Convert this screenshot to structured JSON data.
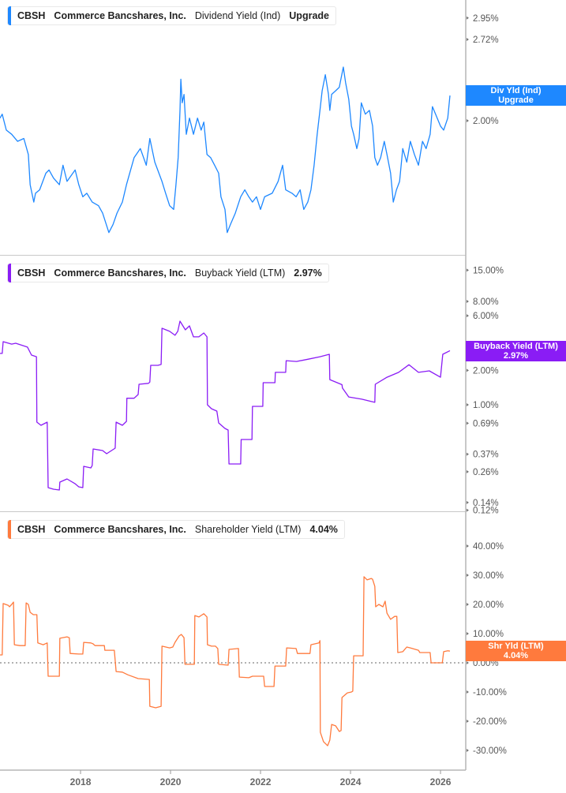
{
  "chart_data": [
    {
      "type": "line",
      "ticker": "CBSH",
      "company": "Commerce Bancshares, Inc.",
      "metric": "Dividend Yield (Ind)",
      "value_label": "Upgrade",
      "tag_line1": "Div Yld (Ind)",
      "tag_line2": "Upgrade",
      "color": "#1E88FF",
      "y_scale": "log",
      "y_ticks": [
        "2.95%",
        "2.72%",
        "2.00%"
      ],
      "y_tick_values": [
        2.95,
        2.72,
        2.0
      ],
      "points": [
        [
          2016.21,
          2.02
        ],
        [
          2016.26,
          2.05
        ],
        [
          2016.35,
          1.93
        ],
        [
          2016.47,
          1.9
        ],
        [
          2016.6,
          1.85
        ],
        [
          2016.74,
          1.87
        ],
        [
          2016.84,
          1.76
        ],
        [
          2016.88,
          1.57
        ],
        [
          2016.96,
          1.47
        ],
        [
          2017.0,
          1.52
        ],
        [
          2017.09,
          1.54
        ],
        [
          2017.23,
          1.64
        ],
        [
          2017.3,
          1.66
        ],
        [
          2017.4,
          1.61
        ],
        [
          2017.53,
          1.57
        ],
        [
          2017.61,
          1.69
        ],
        [
          2017.7,
          1.59
        ],
        [
          2017.88,
          1.66
        ],
        [
          2017.96,
          1.57
        ],
        [
          2018.05,
          1.5
        ],
        [
          2018.14,
          1.52
        ],
        [
          2018.26,
          1.47
        ],
        [
          2018.4,
          1.45
        ],
        [
          2018.49,
          1.41
        ],
        [
          2018.63,
          1.31
        ],
        [
          2018.72,
          1.35
        ],
        [
          2018.81,
          1.41
        ],
        [
          2018.93,
          1.47
        ],
        [
          2019.02,
          1.57
        ],
        [
          2019.19,
          1.74
        ],
        [
          2019.33,
          1.8
        ],
        [
          2019.46,
          1.69
        ],
        [
          2019.54,
          1.87
        ],
        [
          2019.65,
          1.71
        ],
        [
          2019.81,
          1.59
        ],
        [
          2019.89,
          1.52
        ],
        [
          2019.98,
          1.45
        ],
        [
          2020.07,
          1.43
        ],
        [
          2020.12,
          1.57
        ],
        [
          2020.17,
          1.74
        ],
        [
          2020.21,
          2.08
        ],
        [
          2020.23,
          2.34
        ],
        [
          2020.26,
          2.14
        ],
        [
          2020.3,
          2.21
        ],
        [
          2020.35,
          1.9
        ],
        [
          2020.42,
          2.02
        ],
        [
          2020.51,
          1.9
        ],
        [
          2020.6,
          2.02
        ],
        [
          2020.68,
          1.93
        ],
        [
          2020.74,
          1.99
        ],
        [
          2020.81,
          1.76
        ],
        [
          2020.89,
          1.74
        ],
        [
          2020.98,
          1.69
        ],
        [
          2021.07,
          1.64
        ],
        [
          2021.12,
          1.5
        ],
        [
          2021.21,
          1.43
        ],
        [
          2021.26,
          1.31
        ],
        [
          2021.33,
          1.35
        ],
        [
          2021.44,
          1.41
        ],
        [
          2021.56,
          1.5
        ],
        [
          2021.65,
          1.54
        ],
        [
          2021.74,
          1.5
        ],
        [
          2021.82,
          1.47
        ],
        [
          2021.91,
          1.5
        ],
        [
          2022.0,
          1.43
        ],
        [
          2022.09,
          1.5
        ],
        [
          2022.26,
          1.52
        ],
        [
          2022.39,
          1.59
        ],
        [
          2022.49,
          1.69
        ],
        [
          2022.56,
          1.54
        ],
        [
          2022.7,
          1.52
        ],
        [
          2022.79,
          1.5
        ],
        [
          2022.88,
          1.54
        ],
        [
          2022.96,
          1.43
        ],
        [
          2023.05,
          1.47
        ],
        [
          2023.12,
          1.54
        ],
        [
          2023.19,
          1.69
        ],
        [
          2023.26,
          1.9
        ],
        [
          2023.32,
          2.08
        ],
        [
          2023.37,
          2.24
        ],
        [
          2023.44,
          2.38
        ],
        [
          2023.51,
          2.21
        ],
        [
          2023.54,
          2.08
        ],
        [
          2023.58,
          2.21
        ],
        [
          2023.67,
          2.24
        ],
        [
          2023.75,
          2.27
        ],
        [
          2023.84,
          2.45
        ],
        [
          2023.89,
          2.31
        ],
        [
          2023.96,
          2.17
        ],
        [
          2024.02,
          1.96
        ],
        [
          2024.07,
          1.9
        ],
        [
          2024.14,
          1.8
        ],
        [
          2024.19,
          1.87
        ],
        [
          2024.24,
          2.14
        ],
        [
          2024.33,
          2.05
        ],
        [
          2024.42,
          2.08
        ],
        [
          2024.49,
          1.96
        ],
        [
          2024.54,
          1.74
        ],
        [
          2024.6,
          1.69
        ],
        [
          2024.67,
          1.74
        ],
        [
          2024.75,
          1.85
        ],
        [
          2024.81,
          1.76
        ],
        [
          2024.89,
          1.64
        ],
        [
          2024.95,
          1.47
        ],
        [
          2025.02,
          1.54
        ],
        [
          2025.09,
          1.59
        ],
        [
          2025.16,
          1.8
        ],
        [
          2025.25,
          1.71
        ],
        [
          2025.33,
          1.85
        ],
        [
          2025.42,
          1.76
        ],
        [
          2025.51,
          1.69
        ],
        [
          2025.6,
          1.85
        ],
        [
          2025.68,
          1.8
        ],
        [
          2025.77,
          1.9
        ],
        [
          2025.82,
          2.11
        ],
        [
          2025.89,
          2.05
        ],
        [
          2026.0,
          1.96
        ],
        [
          2026.07,
          1.93
        ],
        [
          2026.16,
          2.02
        ],
        [
          2026.21,
          2.2
        ]
      ]
    },
    {
      "type": "line",
      "ticker": "CBSH",
      "company": "Commerce Bancshares, Inc.",
      "metric": "Buyback Yield (LTM)",
      "value_label": "2.97%",
      "tag_line1": "Buyback Yield (LTM)",
      "tag_line2": "2.97%",
      "color": "#8A1CF5",
      "y_scale": "log",
      "y_ticks": [
        "15.00%",
        "8.00%",
        "6.00%",
        "2.00%",
        "1.00%",
        "0.69%",
        "0.37%",
        "0.26%",
        "0.14%",
        "0.12%"
      ],
      "y_tick_values": [
        15,
        8,
        6,
        2,
        1,
        0.69,
        0.37,
        0.26,
        0.14,
        0.12
      ],
      "points": [
        [
          2016.21,
          2.81
        ],
        [
          2016.26,
          2.81
        ],
        [
          2016.28,
          3.56
        ],
        [
          2016.47,
          3.39
        ],
        [
          2016.56,
          3.45
        ],
        [
          2016.82,
          3.19
        ],
        [
          2016.91,
          2.72
        ],
        [
          2017.02,
          2.63
        ],
        [
          2017.03,
          0.705
        ],
        [
          2017.12,
          0.662
        ],
        [
          2017.26,
          0.705
        ],
        [
          2017.28,
          0.189
        ],
        [
          2017.4,
          0.183
        ],
        [
          2017.53,
          0.18
        ],
        [
          2017.54,
          0.211
        ],
        [
          2017.7,
          0.225
        ],
        [
          2017.88,
          0.204
        ],
        [
          2017.96,
          0.192
        ],
        [
          2018.05,
          0.189
        ],
        [
          2018.07,
          0.29
        ],
        [
          2018.23,
          0.281
        ],
        [
          2018.26,
          0.295
        ],
        [
          2018.28,
          0.411
        ],
        [
          2018.49,
          0.398
        ],
        [
          2018.58,
          0.374
        ],
        [
          2018.77,
          0.418
        ],
        [
          2018.79,
          0.705
        ],
        [
          2018.93,
          0.662
        ],
        [
          2019.02,
          0.716
        ],
        [
          2019.03,
          1.14
        ],
        [
          2019.19,
          1.14
        ],
        [
          2019.28,
          1.23
        ],
        [
          2019.3,
          1.51
        ],
        [
          2019.51,
          1.54
        ],
        [
          2019.54,
          1.58
        ],
        [
          2019.56,
          2.21
        ],
        [
          2019.72,
          2.21
        ],
        [
          2019.79,
          2.25
        ],
        [
          2019.81,
          4.66
        ],
        [
          2019.98,
          4.38
        ],
        [
          2020.1,
          4.05
        ],
        [
          2020.16,
          4.38
        ],
        [
          2020.21,
          5.38
        ],
        [
          2020.33,
          4.52
        ],
        [
          2020.42,
          4.89
        ],
        [
          2020.51,
          3.92
        ],
        [
          2020.63,
          3.92
        ],
        [
          2020.74,
          4.24
        ],
        [
          2020.81,
          3.92
        ],
        [
          2020.82,
          1.0
        ],
        [
          2020.91,
          0.924
        ],
        [
          2021.03,
          0.881
        ],
        [
          2021.07,
          0.694
        ],
        [
          2021.21,
          0.621
        ],
        [
          2021.28,
          0.602
        ],
        [
          2021.3,
          0.304
        ],
        [
          2021.44,
          0.304
        ],
        [
          2021.56,
          0.304
        ],
        [
          2021.57,
          0.497
        ],
        [
          2021.81,
          0.497
        ],
        [
          2021.82,
          0.969
        ],
        [
          2022.05,
          0.969
        ],
        [
          2022.06,
          1.56
        ],
        [
          2022.32,
          1.56
        ],
        [
          2022.33,
          1.92
        ],
        [
          2022.56,
          1.92
        ],
        [
          2022.57,
          2.43
        ],
        [
          2022.8,
          2.39
        ],
        [
          2023.05,
          2.5
        ],
        [
          2023.32,
          2.63
        ],
        [
          2023.53,
          2.76
        ],
        [
          2023.54,
          1.66
        ],
        [
          2023.81,
          1.5
        ],
        [
          2023.82,
          1.4
        ],
        [
          2023.96,
          1.17
        ],
        [
          2024.25,
          1.12
        ],
        [
          2024.54,
          1.05
        ],
        [
          2024.55,
          1.51
        ],
        [
          2024.81,
          1.74
        ],
        [
          2025.07,
          1.92
        ],
        [
          2025.3,
          2.24
        ],
        [
          2025.51,
          1.92
        ],
        [
          2025.75,
          1.98
        ],
        [
          2026.0,
          1.74
        ],
        [
          2026.05,
          2.76
        ],
        [
          2026.21,
          2.97
        ]
      ]
    },
    {
      "type": "line",
      "ticker": "CBSH",
      "company": "Commerce Bancshares, Inc.",
      "metric": "Shareholder Yield (LTM)",
      "value_label": "4.04%",
      "tag_line1": "Shr Yld (LTM)",
      "tag_line2": "4.04%",
      "color": "#FF7A3D",
      "y_scale": "linear",
      "zero_line": true,
      "y_ticks": [
        "40.00%",
        "30.00%",
        "20.00%",
        "10.00%",
        "0.00%",
        "-10.00%",
        "-20.00%",
        "-30.00%"
      ],
      "y_tick_values": [
        40,
        30,
        20,
        10,
        0,
        -10,
        -20,
        -30
      ],
      "points": [
        [
          2016.21,
          2.7
        ],
        [
          2016.26,
          2.7
        ],
        [
          2016.28,
          20.3
        ],
        [
          2016.39,
          19.7
        ],
        [
          2016.42,
          19.2
        ],
        [
          2016.47,
          20.0
        ],
        [
          2016.51,
          20.8
        ],
        [
          2016.53,
          6.2
        ],
        [
          2016.65,
          5.9
        ],
        [
          2016.77,
          5.9
        ],
        [
          2016.79,
          20.5
        ],
        [
          2016.84,
          20.0
        ],
        [
          2016.88,
          17.3
        ],
        [
          2016.95,
          16.5
        ],
        [
          2017.03,
          16.5
        ],
        [
          2017.05,
          6.8
        ],
        [
          2017.17,
          6.2
        ],
        [
          2017.26,
          6.8
        ],
        [
          2017.28,
          -4.6
        ],
        [
          2017.53,
          -4.6
        ],
        [
          2017.54,
          8.4
        ],
        [
          2017.7,
          8.9
        ],
        [
          2017.75,
          8.6
        ],
        [
          2017.77,
          3.2
        ],
        [
          2017.96,
          3.0
        ],
        [
          2018.05,
          3.0
        ],
        [
          2018.07,
          7.0
        ],
        [
          2018.23,
          6.8
        ],
        [
          2018.28,
          6.5
        ],
        [
          2018.32,
          5.9
        ],
        [
          2018.53,
          5.9
        ],
        [
          2018.54,
          4.3
        ],
        [
          2018.75,
          4.3
        ],
        [
          2018.79,
          -3.0
        ],
        [
          2018.93,
          -3.2
        ],
        [
          2019.05,
          -4.1
        ],
        [
          2019.28,
          -5.4
        ],
        [
          2019.53,
          -5.7
        ],
        [
          2019.54,
          -14.9
        ],
        [
          2019.67,
          -15.4
        ],
        [
          2019.79,
          -14.9
        ],
        [
          2019.81,
          5.7
        ],
        [
          2019.98,
          5.1
        ],
        [
          2020.05,
          5.4
        ],
        [
          2020.1,
          7.0
        ],
        [
          2020.19,
          9.2
        ],
        [
          2020.24,
          9.7
        ],
        [
          2020.3,
          8.6
        ],
        [
          2020.32,
          -0.5
        ],
        [
          2020.53,
          -0.5
        ],
        [
          2020.54,
          16.2
        ],
        [
          2020.63,
          15.7
        ],
        [
          2020.74,
          16.8
        ],
        [
          2020.81,
          15.7
        ],
        [
          2020.82,
          6.2
        ],
        [
          2020.91,
          5.7
        ],
        [
          2021.0,
          5.7
        ],
        [
          2021.05,
          4.9
        ],
        [
          2021.07,
          -0.5
        ],
        [
          2021.28,
          -0.8
        ],
        [
          2021.3,
          4.6
        ],
        [
          2021.51,
          4.9
        ],
        [
          2021.53,
          -4.9
        ],
        [
          2021.74,
          -5.1
        ],
        [
          2021.82,
          -4.6
        ],
        [
          2022.07,
          -4.6
        ],
        [
          2022.09,
          -8.1
        ],
        [
          2022.3,
          -8.1
        ],
        [
          2022.32,
          -1.1
        ],
        [
          2022.56,
          -1.1
        ],
        [
          2022.58,
          5.1
        ],
        [
          2022.79,
          4.9
        ],
        [
          2022.82,
          3.2
        ],
        [
          2023.1,
          3.2
        ],
        [
          2023.12,
          6.2
        ],
        [
          2023.3,
          6.8
        ],
        [
          2023.32,
          7.6
        ],
        [
          2023.33,
          -23.8
        ],
        [
          2023.4,
          -27.0
        ],
        [
          2023.49,
          -28.4
        ],
        [
          2023.54,
          -26.5
        ],
        [
          2023.58,
          -21.1
        ],
        [
          2023.67,
          -21.6
        ],
        [
          2023.75,
          -23.5
        ],
        [
          2023.79,
          -23.2
        ],
        [
          2023.81,
          -11.9
        ],
        [
          2023.93,
          -10.3
        ],
        [
          2024.02,
          -10.0
        ],
        [
          2024.05,
          -9.7
        ],
        [
          2024.07,
          2.4
        ],
        [
          2024.28,
          2.4
        ],
        [
          2024.3,
          29.5
        ],
        [
          2024.37,
          28.4
        ],
        [
          2024.46,
          28.9
        ],
        [
          2024.49,
          28.6
        ],
        [
          2024.54,
          26.2
        ],
        [
          2024.56,
          19.2
        ],
        [
          2024.63,
          20.0
        ],
        [
          2024.72,
          19.2
        ],
        [
          2024.77,
          21.1
        ],
        [
          2024.81,
          17.0
        ],
        [
          2024.89,
          14.9
        ],
        [
          2024.98,
          15.9
        ],
        [
          2025.03,
          15.9
        ],
        [
          2025.05,
          3.5
        ],
        [
          2025.16,
          3.8
        ],
        [
          2025.25,
          5.4
        ],
        [
          2025.33,
          5.1
        ],
        [
          2025.51,
          4.3
        ],
        [
          2025.54,
          3.5
        ],
        [
          2025.77,
          3.5
        ],
        [
          2025.79,
          0.0
        ],
        [
          2026.04,
          0.0
        ],
        [
          2026.07,
          3.8
        ],
        [
          2026.16,
          4.1
        ],
        [
          2026.21,
          4.04
        ]
      ]
    }
  ],
  "x_axis": {
    "tick_labels": [
      "2018",
      "2020",
      "2022",
      "2024",
      "2026"
    ],
    "tick_values": [
      2018,
      2020,
      2022,
      2024,
      2026
    ]
  }
}
